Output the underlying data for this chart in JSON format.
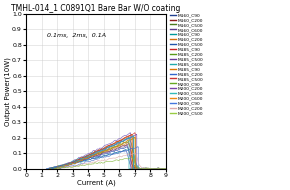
{
  "title": "TMHL-014_1 C0891Q1 Bare Bar W/O coating",
  "xlabel": "Current (A)",
  "ylabel": "Output Power(10W)",
  "annotation": "0.1ms,  2ms,  0.1A",
  "xlim": [
    0,
    9
  ],
  "ylim": [
    0,
    1.0
  ],
  "xticks": [
    0,
    1,
    2,
    3,
    4,
    5,
    6,
    7,
    8,
    9
  ],
  "yticks": [
    0.0,
    0.1,
    0.2,
    0.3,
    0.4,
    0.5,
    0.6,
    0.7,
    0.8,
    0.9,
    1.0
  ],
  "legend_entries": [
    {
      "label": "M160_C90",
      "color": "#1f3f8f"
    },
    {
      "label": "M160_C200",
      "color": "#8b1a1a"
    },
    {
      "label": "M160_C500",
      "color": "#4a7a1e"
    },
    {
      "label": "M160_C600",
      "color": "#5b3a8b"
    },
    {
      "label": "M160_C90",
      "color": "#009999"
    },
    {
      "label": "M160_C200",
      "color": "#d4700a"
    },
    {
      "label": "M160_C500",
      "color": "#2255aa"
    },
    {
      "label": "M185_C90",
      "color": "#cc2222"
    },
    {
      "label": "M185_C200",
      "color": "#5a9a1a"
    },
    {
      "label": "M185_C500",
      "color": "#6a3a9a"
    },
    {
      "label": "M185_C600",
      "color": "#22aaaa"
    },
    {
      "label": "M185_C90",
      "color": "#dd7700"
    },
    {
      "label": "M185_C200",
      "color": "#3366cc"
    },
    {
      "label": "M185_C500",
      "color": "#cc3333"
    },
    {
      "label": "M200_C90",
      "color": "#66aa22"
    },
    {
      "label": "M200_C200",
      "color": "#7744aa"
    },
    {
      "label": "M200_C500",
      "color": "#33bbbb"
    },
    {
      "label": "M200_C600",
      "color": "#ee8811"
    },
    {
      "label": "M200_C90",
      "color": "#4477dd"
    },
    {
      "label": "M200_C200",
      "color": "#ddaaaa"
    },
    {
      "label": "M200_C500",
      "color": "#99cc44"
    }
  ],
  "background_color": "#ffffff",
  "grid_color": "#cccccc"
}
